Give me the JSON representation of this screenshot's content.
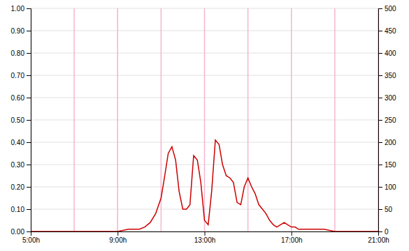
{
  "chart_data": {
    "type": "line",
    "x": [
      5.0,
      5.5,
      6.0,
      6.5,
      7.0,
      7.5,
      8.0,
      8.5,
      9.0,
      9.5,
      10.0,
      10.25,
      10.5,
      10.75,
      11.0,
      11.17,
      11.33,
      11.5,
      11.67,
      11.83,
      12.0,
      12.17,
      12.33,
      12.5,
      12.67,
      12.83,
      13.0,
      13.17,
      13.33,
      13.5,
      13.67,
      13.83,
      14.0,
      14.17,
      14.33,
      14.5,
      14.67,
      14.83,
      15.0,
      15.17,
      15.33,
      15.5,
      15.67,
      15.83,
      16.0,
      16.17,
      16.33,
      16.5,
      16.67,
      16.83,
      17.0,
      17.17,
      17.33,
      17.5,
      17.67,
      18.0,
      18.5,
      19.0,
      21.0
    ],
    "series": [
      {
        "color": "#cc0000",
        "values": [
          0.0,
          0.0,
          0.0,
          0.0,
          0.0,
          0.0,
          0.0,
          0.0,
          0.0,
          0.01,
          0.01,
          0.02,
          0.04,
          0.08,
          0.15,
          0.25,
          0.35,
          0.38,
          0.32,
          0.18,
          0.1,
          0.1,
          0.12,
          0.34,
          0.32,
          0.22,
          0.05,
          0.03,
          0.18,
          0.41,
          0.39,
          0.3,
          0.25,
          0.24,
          0.22,
          0.13,
          0.12,
          0.2,
          0.24,
          0.2,
          0.17,
          0.12,
          0.1,
          0.08,
          0.05,
          0.03,
          0.02,
          0.03,
          0.04,
          0.03,
          0.02,
          0.02,
          0.01,
          0.01,
          0.01,
          0.01,
          0.01,
          0.0,
          0.0
        ]
      }
    ],
    "xlim": [
      5.0,
      21.0
    ],
    "xticks": [
      {
        "value": 5,
        "label": "5:00h"
      },
      {
        "value": 9,
        "label": "9:00h"
      },
      {
        "value": 13,
        "label": "13:00h"
      },
      {
        "value": 17,
        "label": "17:00h"
      },
      {
        "value": 21,
        "label": "21:00h"
      }
    ],
    "ylim": [
      0.0,
      1.0
    ],
    "yticks": [
      {
        "value": 0.0,
        "label": "0.00"
      },
      {
        "value": 0.1,
        "label": "0.10"
      },
      {
        "value": 0.2,
        "label": "0.20"
      },
      {
        "value": 0.3,
        "label": "0.30"
      },
      {
        "value": 0.4,
        "label": "0.40"
      },
      {
        "value": 0.5,
        "label": "0.50"
      },
      {
        "value": 0.6,
        "label": "0.60"
      },
      {
        "value": 0.7,
        "label": "0.70"
      },
      {
        "value": 0.8,
        "label": "0.80"
      },
      {
        "value": 0.9,
        "label": "0.90"
      },
      {
        "value": 1.0,
        "label": "1.00"
      }
    ],
    "y2lim": [
      0,
      500
    ],
    "y2ticks": [
      0,
      50,
      100,
      150,
      200,
      250,
      300,
      350,
      400,
      450,
      500
    ],
    "grid": true,
    "vlines": [
      5,
      7,
      9,
      11,
      13,
      15,
      17,
      19,
      21
    ]
  }
}
